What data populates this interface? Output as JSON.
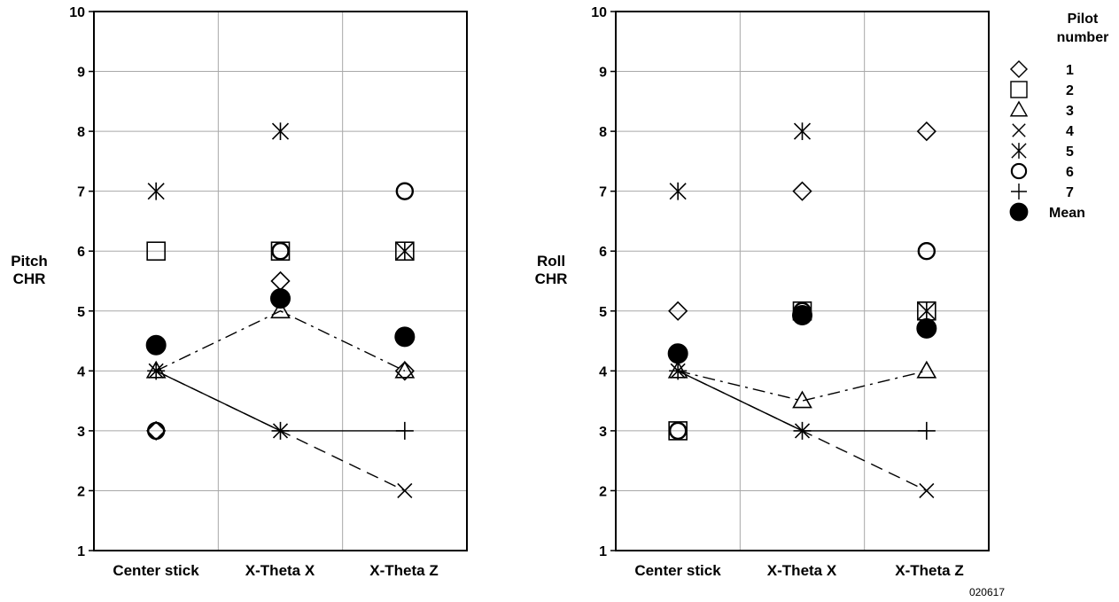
{
  "chart_data": [
    {
      "type": "scatter",
      "ylabel_lines": [
        "Pitch",
        "CHR"
      ],
      "categories": [
        "Center stick",
        "X-Theta X",
        "X-Theta Z"
      ],
      "ylim": [
        1,
        10
      ],
      "yticks": [
        1,
        2,
        3,
        4,
        5,
        6,
        7,
        8,
        9,
        10
      ],
      "grid": true,
      "series": [
        {
          "name": "1",
          "marker": "diamond",
          "values": [
            3,
            5.5,
            4
          ]
        },
        {
          "name": "2",
          "marker": "square",
          "values": [
            6,
            6,
            6
          ]
        },
        {
          "name": "3",
          "marker": "triangle",
          "values": [
            4,
            5,
            4
          ],
          "line": "dashdot"
        },
        {
          "name": "4",
          "marker": "x",
          "values": [
            4,
            3,
            2
          ],
          "line": "dashed"
        },
        {
          "name": "5",
          "marker": "asterisk",
          "values": [
            7,
            8,
            6
          ]
        },
        {
          "name": "6",
          "marker": "circle",
          "values": [
            3,
            6,
            7
          ]
        },
        {
          "name": "7",
          "marker": "plus",
          "values": [
            4,
            3,
            3
          ],
          "line": "solid"
        },
        {
          "name": "Mean",
          "marker": "filled-circle",
          "values": [
            4.43,
            5.21,
            4.57
          ]
        }
      ]
    },
    {
      "type": "scatter",
      "ylabel_lines": [
        "Roll",
        "CHR"
      ],
      "categories": [
        "Center stick",
        "X-Theta X",
        "X-Theta Z"
      ],
      "ylim": [
        1,
        10
      ],
      "yticks": [
        1,
        2,
        3,
        4,
        5,
        6,
        7,
        8,
        9,
        10
      ],
      "grid": true,
      "legend_position": "right",
      "series": [
        {
          "name": "1",
          "marker": "diamond",
          "values": [
            5,
            7,
            8
          ]
        },
        {
          "name": "2",
          "marker": "square",
          "values": [
            3,
            5,
            5
          ]
        },
        {
          "name": "3",
          "marker": "triangle",
          "values": [
            4,
            3.5,
            4
          ],
          "line": "dashdot"
        },
        {
          "name": "4",
          "marker": "x",
          "values": [
            4,
            3,
            2
          ],
          "line": "dashed"
        },
        {
          "name": "5",
          "marker": "asterisk",
          "values": [
            7,
            8,
            5
          ]
        },
        {
          "name": "6",
          "marker": "circle",
          "values": [
            3,
            5,
            6
          ]
        },
        {
          "name": "7",
          "marker": "plus",
          "values": [
            4,
            3,
            3
          ],
          "line": "solid"
        },
        {
          "name": "Mean",
          "marker": "filled-circle",
          "values": [
            4.29,
            4.93,
            4.71
          ]
        }
      ]
    }
  ],
  "legend": {
    "title_lines": [
      "Pilot",
      "number"
    ]
  },
  "figure_number": "020617"
}
